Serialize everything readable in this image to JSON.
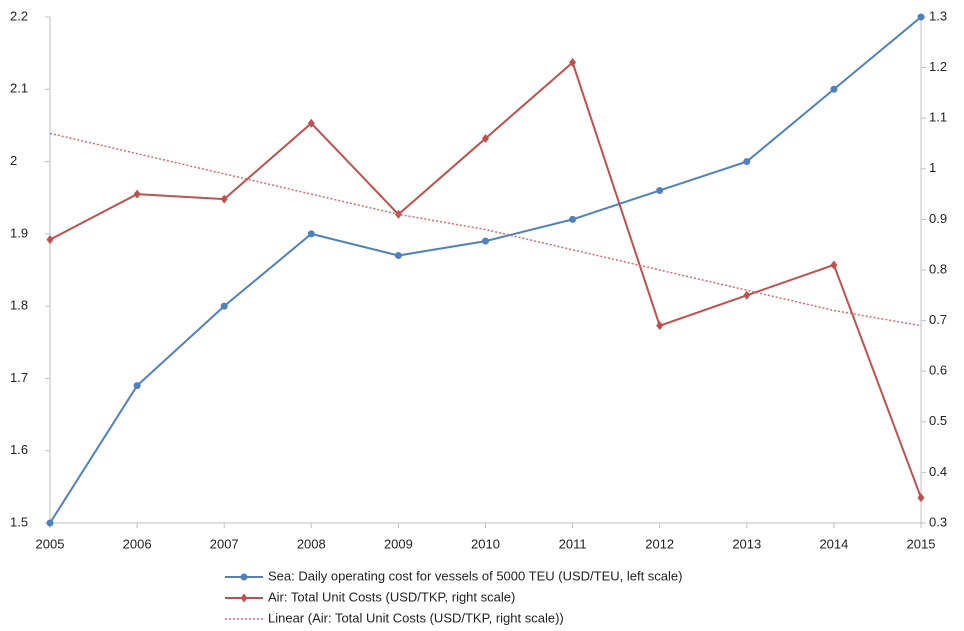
{
  "chart_data": {
    "type": "line",
    "categories": [
      "2005",
      "2006",
      "2007",
      "2008",
      "2009",
      "2010",
      "2011",
      "2012",
      "2013",
      "2014",
      "2015"
    ],
    "ylim": [
      1.5,
      2.2
    ],
    "yticks": [
      1.5,
      1.6,
      1.7,
      1.8,
      1.9,
      2,
      2.1,
      2.2
    ],
    "y2lim": [
      0.3,
      1.3
    ],
    "y2ticks": [
      0.3,
      0.4,
      0.5,
      0.6,
      0.7,
      0.8,
      0.9,
      1,
      1.1,
      1.2,
      1.3
    ],
    "grid": false,
    "series": [
      {
        "name": "Sea: Daily operating cost for vessels of 5000 TEU (USD/TEU, left scale)",
        "color": "#4f81bd",
        "marker": "circle",
        "values": [
          1.5,
          1.69,
          1.8,
          1.9,
          1.87,
          1.89,
          1.92,
          1.96,
          2.0,
          2.1,
          2.2
        ]
      },
      {
        "name": "Air: Total Unit Costs (USD/TKP, right scale)",
        "color": "#c0504d",
        "marker": "diamond",
        "axis": "y2",
        "values": [
          0.86,
          0.95,
          0.94,
          1.09,
          0.91,
          1.06,
          1.21,
          0.69,
          0.75,
          0.81,
          0.35
        ]
      },
      {
        "name": "Linear (Air: Total Unit Costs (USD/TKP, right scale))",
        "color": "#d9696a",
        "dash": "dotted",
        "axis": "y2",
        "values": [
          1.07,
          1.03,
          0.99,
          0.95,
          0.91,
          0.88,
          0.84,
          0.8,
          0.76,
          0.72,
          0.69
        ]
      }
    ]
  }
}
